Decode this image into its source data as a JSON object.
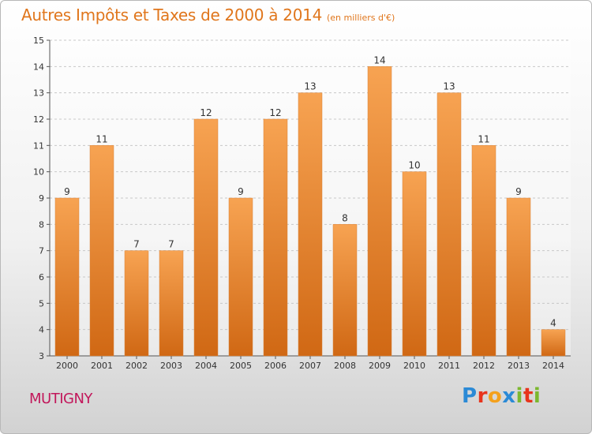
{
  "chart_data": {
    "type": "bar",
    "title": "Autres Impôts et Taxes de 2000 à 2014",
    "unit_label": "(en milliers d'€)",
    "categories": [
      "2000",
      "2001",
      "2002",
      "2003",
      "2004",
      "2005",
      "2006",
      "2007",
      "2008",
      "2009",
      "2010",
      "2011",
      "2012",
      "2013",
      "2014"
    ],
    "values": [
      9,
      11,
      7,
      7,
      12,
      9,
      12,
      13,
      8,
      14,
      10,
      13,
      11,
      9,
      4
    ],
    "ylim": [
      3,
      15
    ],
    "yticks": [
      3,
      4,
      5,
      6,
      7,
      8,
      9,
      10,
      11,
      12,
      13,
      14,
      15
    ],
    "grid": true,
    "bar_color_top": "#f7a352",
    "bar_color_bottom": "#d06814"
  },
  "commune": "MUTIGNY",
  "logo": {
    "text": "Proxiti"
  }
}
